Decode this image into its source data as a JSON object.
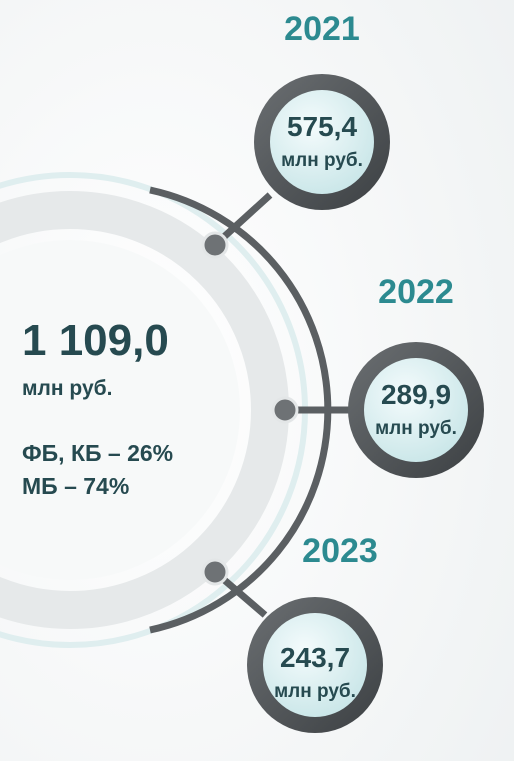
{
  "total": {
    "value": "1 109,0",
    "unit": "млн руб.",
    "split": [
      "ФБ, КБ – 26%",
      "МБ – 74%"
    ]
  },
  "years": [
    {
      "year": "2021",
      "value": "575,4",
      "unit": "млн руб."
    },
    {
      "year": "2022",
      "value": "289,9",
      "unit": "млн руб."
    },
    {
      "year": "2023",
      "value": "243,7",
      "unit": "млн руб."
    }
  ]
}
